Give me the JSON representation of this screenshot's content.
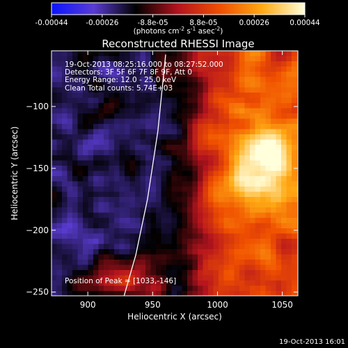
{
  "colorbar": {
    "tick_labels": [
      "-0.00044",
      "-0.00026",
      "-8.8e-05",
      "8.8e-05",
      "0.00026",
      "0.00044"
    ],
    "units_label": "(photons cm",
    "units_sup1": "-2",
    "units_mid": " s",
    "units_sup2": "-1",
    "units_end": " asec",
    "units_sup3": "-2",
    "units_close": ")"
  },
  "chart_data": {
    "type": "heatmap",
    "title": "Reconstructed RHESSI Image",
    "xlabel": "Heliocentric X (arcsec)",
    "ylabel": "Heliocentric Y (arcsec)",
    "xlim": [
      872,
      1062
    ],
    "ylim": [
      -253,
      -55
    ],
    "x_ticks": [
      900,
      950,
      1000,
      1050
    ],
    "y_ticks": [
      -100,
      -150,
      -200,
      -250
    ],
    "color_range": [
      -0.00044,
      0.00044
    ],
    "colormap": [
      "#0a14ff",
      "#5a3cd2",
      "#000000",
      "#b4141e",
      "#f05000",
      "#ffaa14",
      "#ffffdc"
    ],
    "annotations": [
      "19-Oct-2013 08:25:16.000 to 08:27:52.000",
      "Detectors: 3F 5F 6F 7F 8F 9F, Att 0",
      "Energy Range: 12.0 - 25.0 keV",
      "Clean     Total counts: 5.74E+03"
    ],
    "peak_label": "Position of Peak = [1033,-146]",
    "peak": [
      1033,
      -146
    ],
    "limb_curve": [
      [
        960,
        -58
      ],
      [
        954,
        -120
      ],
      [
        946,
        -175
      ],
      [
        937,
        -220
      ],
      [
        928,
        -253
      ]
    ],
    "field_description": "positive emission concentrated in the east (right) half, peaking near (1033,-146); negative residuals in the west half"
  },
  "footer": {
    "timestamp": "19-Oct-2013 16:01"
  }
}
